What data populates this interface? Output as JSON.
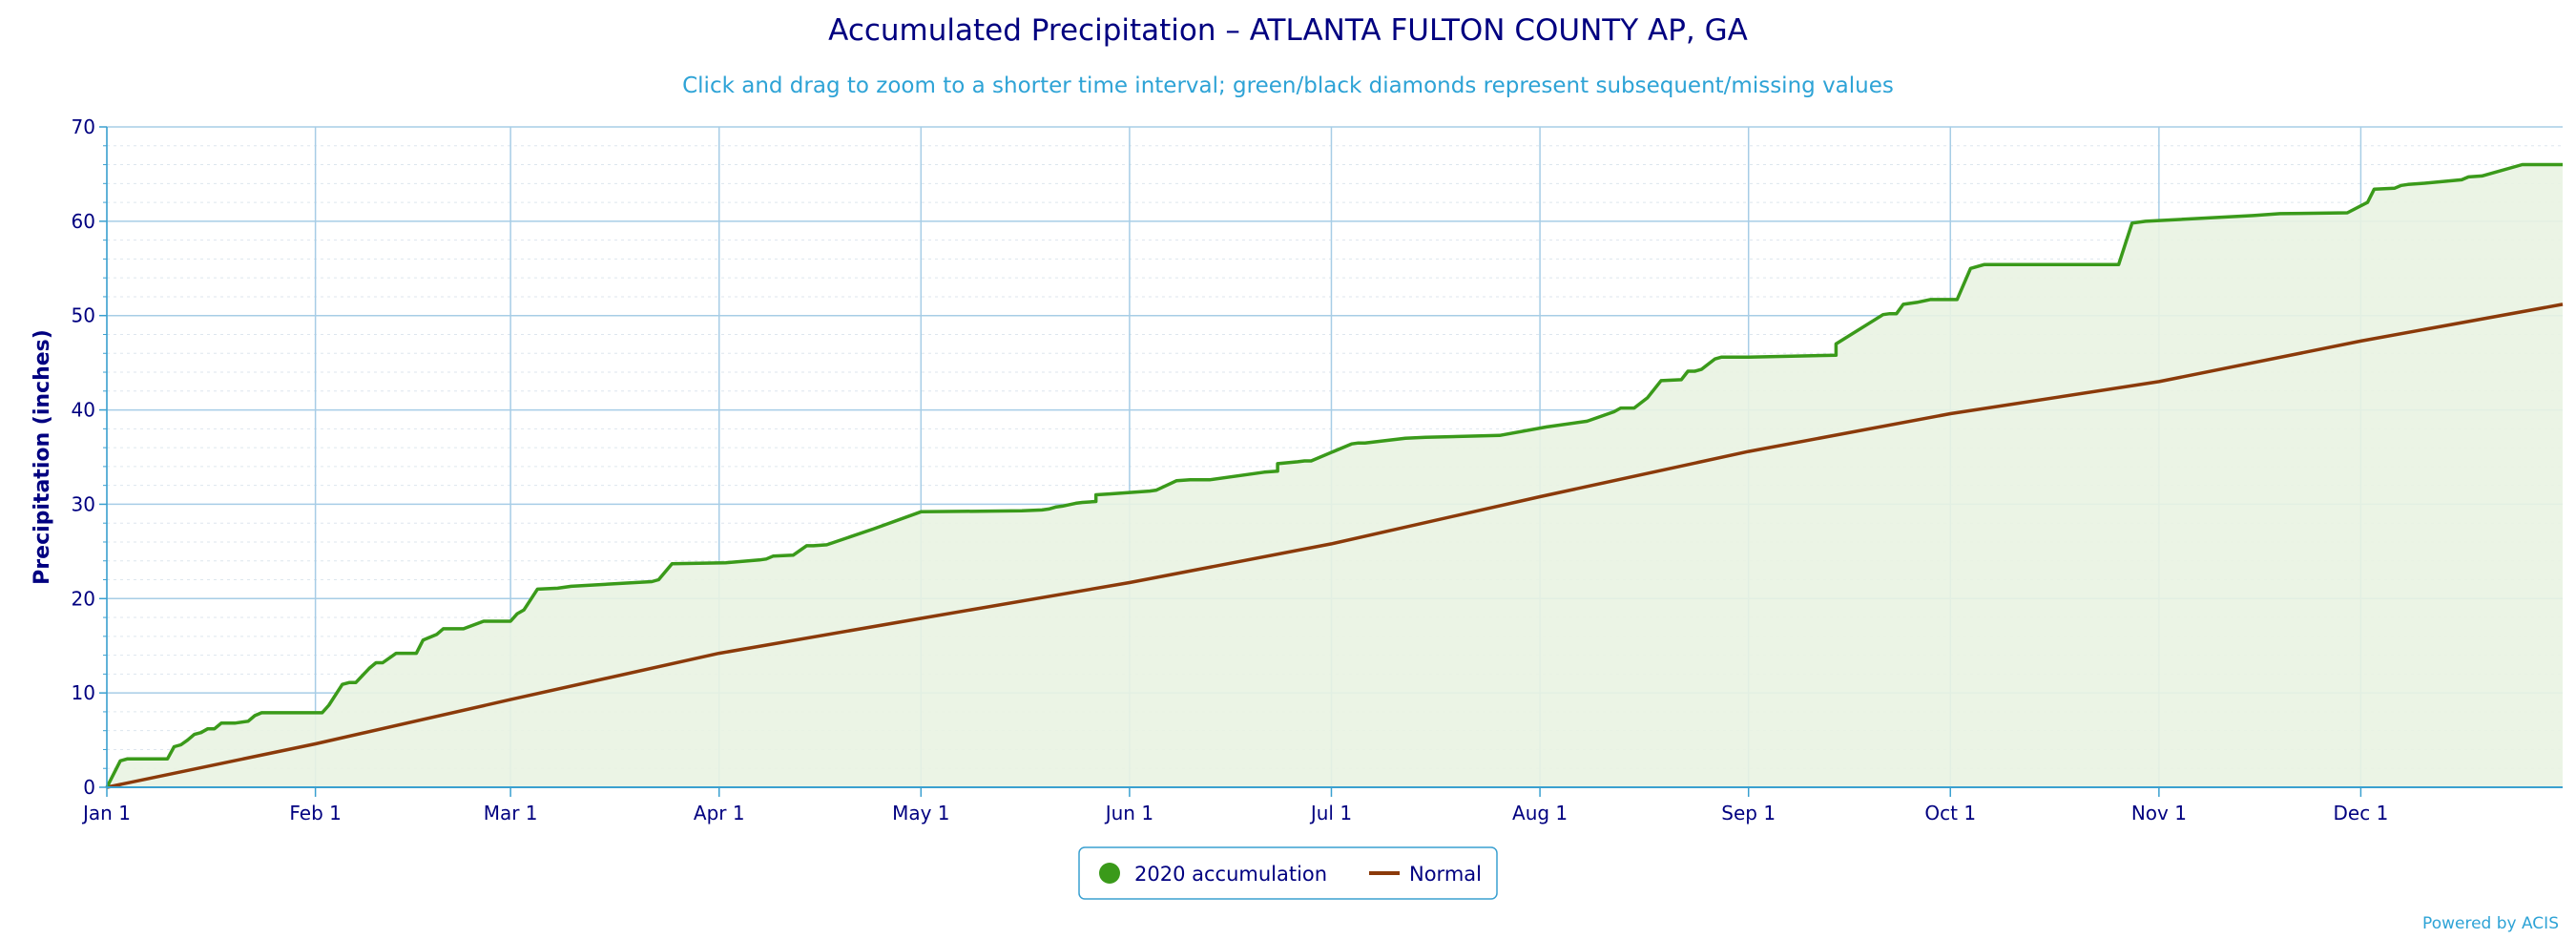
{
  "chart_data": {
    "type": "line",
    "title": "Accumulated Precipitation – ATLANTA FULTON COUNTY AP, GA",
    "subtitle": "Click and drag to zoom to a shorter time interval; green/black diamonds represent subsequent/missing values",
    "ylabel": "Precipitation (inches)",
    "xlabel": "",
    "ylim": [
      0,
      70
    ],
    "yticks": [
      0,
      10,
      20,
      30,
      40,
      50,
      60,
      70
    ],
    "xlim": [
      1,
      366
    ],
    "x_unit": "day of year 2020",
    "x_tick_labels": [
      "Jan 1",
      "Feb 1",
      "Mar 1",
      "Apr 1",
      "May 1",
      "Jun 1",
      "Jul 1",
      "Aug 1",
      "Sep 1",
      "Oct 1",
      "Nov 1",
      "Dec 1"
    ],
    "x_tick_days": [
      1,
      32,
      61,
      92,
      122,
      153,
      183,
      214,
      245,
      275,
      306,
      336
    ],
    "grid": true,
    "legend_position": "bottom-center",
    "series": [
      {
        "name": "2020 accumulation",
        "color": "#3a9a1a",
        "fill": "#e9f3e2",
        "style": "step",
        "x": [
          1,
          3,
          4,
          10,
          11,
          12,
          13,
          14,
          15,
          16,
          17,
          18,
          19,
          20,
          22,
          23,
          24,
          25,
          29,
          33,
          34,
          36,
          37,
          38,
          40,
          41,
          42,
          44,
          45,
          47,
          48,
          50,
          51,
          52,
          54,
          57,
          58,
          60,
          61,
          62,
          63,
          65,
          68,
          70,
          82,
          83,
          85,
          93,
          98,
          99,
          100,
          103,
          105,
          106,
          108,
          115,
          122,
          137,
          140,
          141,
          142,
          143,
          145,
          146,
          148,
          148,
          150,
          156,
          157,
          160,
          162,
          165,
          173,
          175,
          175,
          178,
          179,
          180,
          186,
          187,
          188,
          194,
          197,
          208,
          215,
          221,
          225,
          226,
          228,
          230,
          232,
          235,
          236,
          237,
          238,
          240,
          241,
          243,
          244,
          245,
          258,
          258,
          265,
          266,
          267,
          268,
          269,
          270,
          272,
          276,
          278,
          280,
          300,
          302,
          304,
          320,
          324,
          334,
          337,
          338,
          341,
          342,
          343,
          345,
          351,
          352,
          354,
          360,
          361,
          366
        ],
        "y": [
          0.0,
          2.8,
          3.0,
          3.0,
          4.3,
          4.5,
          5.0,
          5.6,
          5.8,
          6.2,
          6.2,
          6.8,
          6.8,
          6.8,
          7.0,
          7.6,
          7.9,
          7.9,
          7.9,
          7.9,
          8.7,
          10.9,
          11.1,
          11.1,
          12.6,
          13.2,
          13.2,
          14.2,
          14.2,
          14.2,
          15.6,
          16.2,
          16.8,
          16.8,
          16.8,
          17.6,
          17.6,
          17.6,
          17.6,
          18.4,
          18.8,
          21.0,
          21.1,
          21.3,
          21.8,
          22.0,
          23.7,
          23.8,
          24.1,
          24.2,
          24.5,
          24.6,
          25.6,
          25.6,
          25.7,
          27.4,
          29.2,
          29.3,
          29.4,
          29.5,
          29.7,
          29.8,
          30.1,
          30.2,
          30.3,
          31.0,
          31.1,
          31.4,
          31.5,
          32.5,
          32.6,
          32.6,
          33.4,
          33.5,
          34.3,
          34.5,
          34.6,
          34.6,
          36.4,
          36.5,
          36.5,
          37.0,
          37.1,
          37.3,
          38.2,
          38.8,
          39.8,
          40.2,
          40.2,
          41.3,
          43.1,
          43.2,
          44.1,
          44.1,
          44.3,
          45.4,
          45.6,
          45.6,
          45.6,
          45.6,
          45.8,
          47.0,
          50.1,
          50.2,
          50.2,
          51.2,
          51.3,
          51.4,
          51.7,
          51.7,
          55.0,
          55.4,
          55.4,
          59.8,
          60.0,
          60.6,
          60.8,
          60.9,
          62.0,
          63.4,
          63.5,
          63.8,
          63.9,
          64.0,
          64.4,
          64.7,
          64.8,
          66.0,
          66.0,
          66.0
        ]
      },
      {
        "name": "Normal",
        "color": "#8b3a0a",
        "style": "line",
        "x": [
          1,
          32,
          61,
          92,
          122,
          153,
          183,
          214,
          245,
          275,
          306,
          336,
          366
        ],
        "y": [
          0.0,
          4.6,
          9.3,
          14.2,
          17.9,
          21.7,
          25.8,
          30.8,
          35.6,
          39.6,
          43.0,
          47.3,
          51.2
        ]
      }
    ]
  },
  "credits": "Powered by ACIS"
}
